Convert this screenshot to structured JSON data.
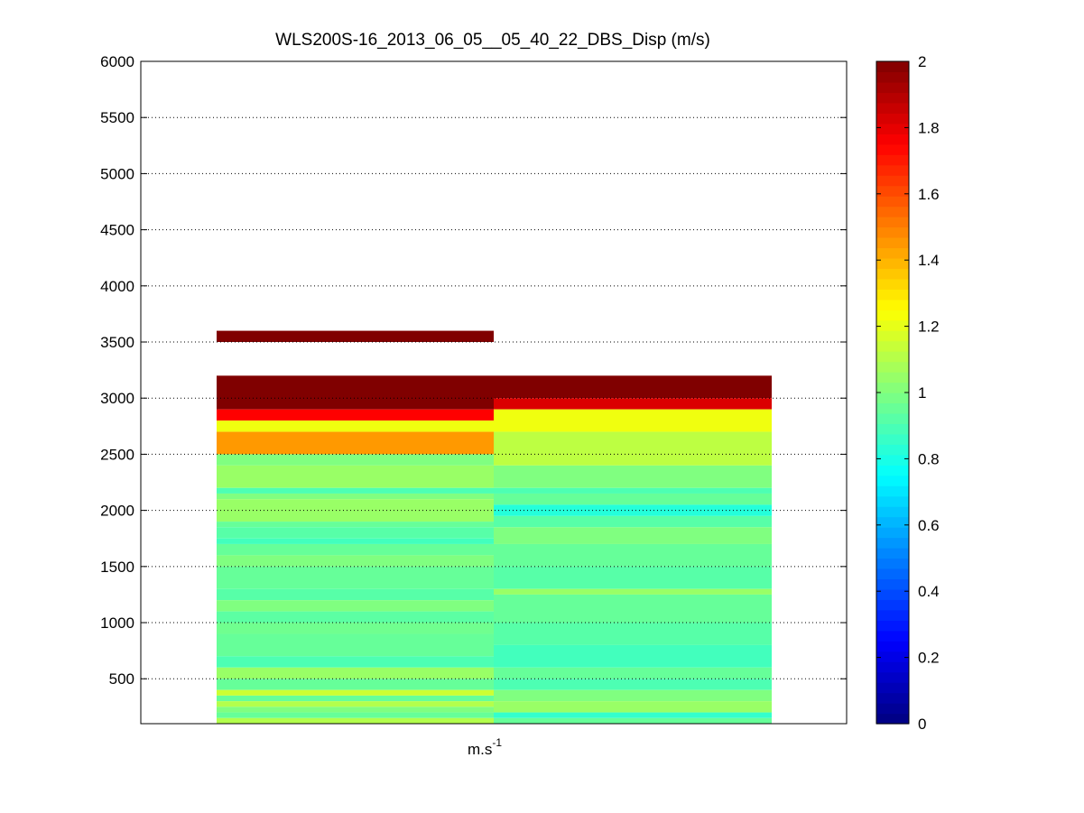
{
  "chart_data": {
    "type": "heatmap",
    "title": "WLS200S-16_2013_06_05__05_40_22_DBS_Disp (m/s)",
    "xlabel_base": "m.s",
    "xlabel_exp": "-1",
    "ylabel": "",
    "ylim": [
      100,
      6000
    ],
    "yticks": [
      500,
      1000,
      1500,
      2000,
      2500,
      3000,
      3500,
      4000,
      4500,
      5000,
      5500,
      6000
    ],
    "ytick_labels": [
      "500",
      "1000",
      "1500",
      "2000",
      "2500",
      "3000",
      "3500",
      "4000",
      "4500",
      "5000",
      "5500",
      "6000"
    ],
    "grid": "y-dotted",
    "colormap": "jet",
    "clim": [
      0,
      2
    ],
    "colorbar_ticks": [
      0,
      0.2,
      0.4,
      0.6,
      0.8,
      1,
      1.2,
      1.4,
      1.6,
      1.8,
      2
    ],
    "colorbar_tick_labels": [
      "0",
      "0.2",
      "0.4",
      "0.6",
      "0.8",
      "1",
      "1.2",
      "1.4",
      "1.6",
      "1.8",
      "2"
    ],
    "columns": [
      {
        "bins": [
          {
            "y0": 3500,
            "y1": 3600,
            "v": 2.0
          },
          {
            "y0": 2900,
            "y1": 3200,
            "v": 2.0
          },
          {
            "y0": 2800,
            "y1": 2900,
            "v": 1.75
          },
          {
            "y0": 2700,
            "y1": 2800,
            "v": 1.22
          },
          {
            "y0": 2500,
            "y1": 2700,
            "v": 1.45
          },
          {
            "y0": 2400,
            "y1": 2500,
            "v": 1.0
          },
          {
            "y0": 2200,
            "y1": 2400,
            "v": 1.05
          },
          {
            "y0": 2150,
            "y1": 2200,
            "v": 0.9
          },
          {
            "y0": 2100,
            "y1": 2150,
            "v": 1.0
          },
          {
            "y0": 1900,
            "y1": 2100,
            "v": 1.05
          },
          {
            "y0": 1850,
            "y1": 1900,
            "v": 0.95
          },
          {
            "y0": 1750,
            "y1": 1850,
            "v": 0.92
          },
          {
            "y0": 1700,
            "y1": 1750,
            "v": 0.88
          },
          {
            "y0": 1600,
            "y1": 1700,
            "v": 0.95
          },
          {
            "y0": 1500,
            "y1": 1600,
            "v": 1.0
          },
          {
            "y0": 1300,
            "y1": 1500,
            "v": 0.95
          },
          {
            "y0": 1200,
            "y1": 1300,
            "v": 0.92
          },
          {
            "y0": 1100,
            "y1": 1200,
            "v": 1.0
          },
          {
            "y0": 1000,
            "y1": 1100,
            "v": 0.93
          },
          {
            "y0": 900,
            "y1": 1000,
            "v": 0.97
          },
          {
            "y0": 700,
            "y1": 900,
            "v": 0.95
          },
          {
            "y0": 600,
            "y1": 700,
            "v": 0.9
          },
          {
            "y0": 500,
            "y1": 600,
            "v": 1.05
          },
          {
            "y0": 400,
            "y1": 500,
            "v": 0.95
          },
          {
            "y0": 350,
            "y1": 400,
            "v": 1.15
          },
          {
            "y0": 300,
            "y1": 350,
            "v": 0.95
          },
          {
            "y0": 250,
            "y1": 300,
            "v": 1.1
          },
          {
            "y0": 200,
            "y1": 250,
            "v": 1.0
          },
          {
            "y0": 150,
            "y1": 200,
            "v": 0.95
          },
          {
            "y0": 100,
            "y1": 150,
            "v": 1.1
          }
        ]
      },
      {
        "bins": [
          {
            "y0": 3000,
            "y1": 3200,
            "v": 2.0
          },
          {
            "y0": 2900,
            "y1": 3000,
            "v": 1.82
          },
          {
            "y0": 2700,
            "y1": 2900,
            "v": 1.22
          },
          {
            "y0": 2400,
            "y1": 2700,
            "v": 1.12
          },
          {
            "y0": 2200,
            "y1": 2400,
            "v": 1.0
          },
          {
            "y0": 2150,
            "y1": 2200,
            "v": 0.9
          },
          {
            "y0": 2050,
            "y1": 2150,
            "v": 0.95
          },
          {
            "y0": 1950,
            "y1": 2050,
            "v": 0.82
          },
          {
            "y0": 1850,
            "y1": 1950,
            "v": 0.92
          },
          {
            "y0": 1700,
            "y1": 1850,
            "v": 1.0
          },
          {
            "y0": 1500,
            "y1": 1700,
            "v": 0.95
          },
          {
            "y0": 1300,
            "y1": 1500,
            "v": 0.92
          },
          {
            "y0": 1250,
            "y1": 1300,
            "v": 1.05
          },
          {
            "y0": 1000,
            "y1": 1250,
            "v": 0.95
          },
          {
            "y0": 800,
            "y1": 1000,
            "v": 0.92
          },
          {
            "y0": 600,
            "y1": 800,
            "v": 0.88
          },
          {
            "y0": 500,
            "y1": 600,
            "v": 0.95
          },
          {
            "y0": 400,
            "y1": 500,
            "v": 0.9
          },
          {
            "y0": 300,
            "y1": 400,
            "v": 1.0
          },
          {
            "y0": 200,
            "y1": 300,
            "v": 1.05
          },
          {
            "y0": 150,
            "y1": 200,
            "v": 0.85
          },
          {
            "y0": 100,
            "y1": 150,
            "v": 0.95
          }
        ]
      }
    ]
  }
}
